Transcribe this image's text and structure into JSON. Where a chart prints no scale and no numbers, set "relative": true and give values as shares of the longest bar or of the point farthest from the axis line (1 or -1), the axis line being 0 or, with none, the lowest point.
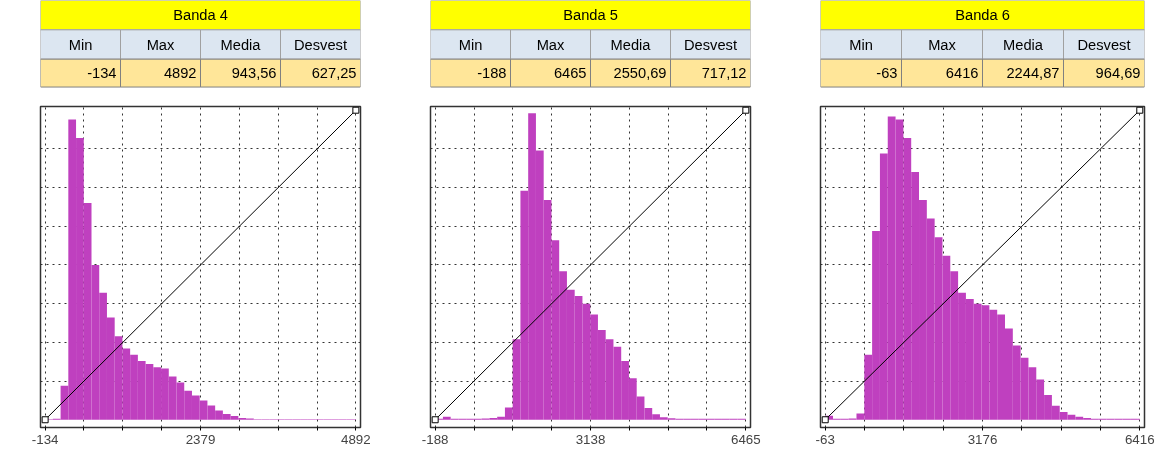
{
  "chart_data": [
    {
      "type": "histogram",
      "title": "Banda 4",
      "relative": true,
      "grid": true,
      "annotations": [
        "Min",
        "Max",
        "Media",
        "Desvest",
        "-134",
        "4892",
        "943,56",
        "627,25"
      ],
      "xlim": [
        -209,
        4967
      ],
      "xticks": [
        -134,
        {
          "value": 494.25,
          "label": null
        },
        {
          "value": 1122.5,
          "label": null
        },
        {
          "value": 1750.75,
          "label": null
        },
        2379,
        {
          "value": 3007.25,
          "label": null
        },
        {
          "value": 3635.5,
          "label": null
        },
        {
          "value": 4263.75,
          "label": null
        },
        4892
      ],
      "series": [
        {
          "color": "#bf40bf",
          "bins": [
            -134,
            -9,
            116,
            241,
            366,
            491,
            616,
            741,
            866,
            991,
            1116,
            1241,
            1366,
            1491,
            1616,
            1741,
            1866,
            1991,
            2116,
            2241,
            2366,
            2491,
            2616,
            2741,
            2866,
            2991,
            3116,
            3241,
            3366,
            3491,
            3616,
            3741,
            3866,
            3991,
            4116,
            4241,
            4366,
            4491,
            4616,
            4741,
            4866,
            4892
          ],
          "values": [
            0.002,
            0.003,
            0.11,
            0.97,
            0.91,
            0.7,
            0.5,
            0.41,
            0.33,
            0.27,
            0.23,
            0.21,
            0.19,
            0.18,
            0.17,
            0.166,
            0.14,
            0.12,
            0.094,
            0.078,
            0.062,
            0.046,
            0.03,
            0.019,
            0.012,
            0.006,
            0.004,
            0.002,
            0.002,
            0.002,
            0.002,
            0.002,
            0.002,
            0.002,
            0.002,
            0.002,
            0.002,
            0.002,
            0.002,
            0.002,
            0.002
          ]
        },
        {
          "type": "line",
          "color": "#000000",
          "marker": "square",
          "line_style": "solid",
          "x": [
            -134,
            4892
          ],
          "values": [
            0,
            1
          ]
        }
      ]
    },
    {
      "type": "histogram",
      "title": "Banda 5",
      "relative": true,
      "grid": true,
      "annotations": [
        "Min",
        "Max",
        "Media",
        "Desvest",
        "-188",
        "6465",
        "2550,69",
        "717,12"
      ],
      "xlim": [
        -288,
        6565
      ],
      "xticks": [
        -188,
        {
          "value": 643.625,
          "label": null
        },
        {
          "value": 1475.25,
          "label": null
        },
        {
          "value": 2306.875,
          "label": null
        },
        3138,
        {
          "value": 3970.125,
          "label": null
        },
        {
          "value": 4801.75,
          "label": null
        },
        {
          "value": 5633.375,
          "label": null
        },
        6465
      ],
      "series": [
        {
          "color": "#bf40bf",
          "bins": [
            -188,
            -22,
            144,
            310,
            476,
            642,
            808,
            974,
            1140,
            1306,
            1472,
            1638,
            1804,
            1970,
            2136,
            2302,
            2468,
            2634,
            2800,
            2966,
            3132,
            3298,
            3464,
            3630,
            3796,
            3962,
            4128,
            4294,
            4460,
            4626,
            4792,
            4958,
            5124,
            5290,
            5456,
            5622,
            5788,
            5954,
            6120,
            6286,
            6452,
            6465
          ],
          "values": [
            0.003,
            0.01,
            0.003,
            0.003,
            0.003,
            0.003,
            0.004,
            0.006,
            0.01,
            0.04,
            0.26,
            0.74,
            0.99,
            0.87,
            0.71,
            0.58,
            0.48,
            0.42,
            0.4,
            0.375,
            0.34,
            0.29,
            0.26,
            0.236,
            0.19,
            0.134,
            0.075,
            0.038,
            0.018,
            0.008,
            0.005,
            0.003,
            0.003,
            0.003,
            0.003,
            0.003,
            0.003,
            0.003,
            0.003,
            0.003,
            0.003
          ]
        },
        {
          "type": "line",
          "color": "#000000",
          "marker": "square",
          "line_style": "solid",
          "x": [
            -188,
            6465
          ],
          "values": [
            0,
            1
          ]
        }
      ]
    },
    {
      "type": "histogram",
      "title": "Banda 6",
      "relative": true,
      "grid": true,
      "annotations": [
        "Min",
        "Max",
        "Media",
        "Desvest",
        "-63",
        "6416",
        "2244,87",
        "964,69"
      ],
      "xlim": [
        -160,
        6513
      ],
      "xticks": [
        -63,
        {
          "value": 746.875,
          "label": null
        },
        {
          "value": 1556.75,
          "label": null
        },
        {
          "value": 2366.625,
          "label": null
        },
        3176,
        {
          "value": 3986.375,
          "label": null
        },
        {
          "value": 4796.25,
          "label": null
        },
        {
          "value": 5606.125,
          "label": null
        },
        6416
      ],
      "series": [
        {
          "color": "#bf40bf",
          "bins": [
            -63,
            98,
            259,
            420,
            581,
            742,
            903,
            1064,
            1225,
            1386,
            1547,
            1708,
            1869,
            2030,
            2191,
            2352,
            2513,
            2674,
            2835,
            2996,
            3157,
            3318,
            3479,
            3640,
            3801,
            3962,
            4123,
            4284,
            4445,
            4606,
            4767,
            4928,
            5089,
            5250,
            5411,
            5572,
            5733,
            5894,
            6055,
            6216,
            6377,
            6416
          ],
          "values": [
            0.013,
            0.003,
            0.003,
            0.004,
            0.02,
            0.21,
            0.61,
            0.86,
            0.98,
            0.97,
            0.91,
            0.8,
            0.71,
            0.65,
            0.59,
            0.53,
            0.48,
            0.41,
            0.39,
            0.375,
            0.37,
            0.355,
            0.34,
            0.295,
            0.24,
            0.2,
            0.17,
            0.13,
            0.08,
            0.045,
            0.025,
            0.016,
            0.01,
            0.006,
            0.003,
            0.003,
            0.003,
            0.003,
            0.003,
            0.003,
            0.003
          ]
        },
        {
          "type": "line",
          "color": "#000000",
          "marker": "square",
          "line_style": "solid",
          "x": [
            -63,
            6416
          ],
          "values": [
            0,
            1
          ]
        }
      ]
    }
  ]
}
